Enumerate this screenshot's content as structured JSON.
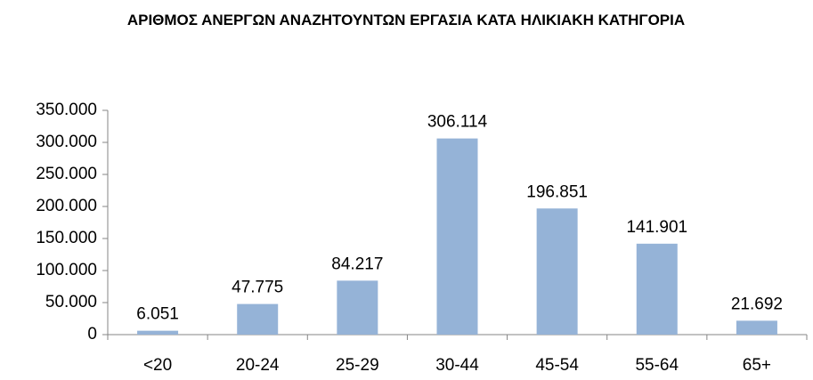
{
  "chart_data": {
    "type": "bar",
    "title": "ΑΡΙΘΜΟΣ ΑΝΕΡΓΩΝ ΑΝΑΖΗΤΟΥΝΤΩΝ ΕΡΓΑΣΙΑ ΚΑΤΑ ΗΛΙΚΙΑΚΗ ΚΑΤΗΓΟΡΙΑ",
    "categories": [
      "<20",
      "20-24",
      "25-29",
      "30-44",
      "45-54",
      "55-64",
      "65+"
    ],
    "values": [
      6051,
      47775,
      84217,
      306114,
      196851,
      141901,
      21692
    ],
    "value_labels": [
      "6.051",
      "47.775",
      "84.217",
      "306.114",
      "196.851",
      "141.901",
      "21.692"
    ],
    "color": "#95b3d7",
    "ylim": [
      0,
      350000
    ],
    "yticks": [
      0,
      {
        "value": 50000,
        "label": "50.000"
      },
      {
        "value": 100000,
        "label": "100.000"
      },
      {
        "value": 150000,
        "label": "150.000"
      },
      {
        "value": 200000,
        "label": "200.000"
      },
      {
        "value": 250000,
        "label": "250.000"
      },
      {
        "value": 300000,
        "label": "300.000"
      },
      {
        "value": 350000,
        "label": "350.000"
      }
    ],
    "grid": false
  }
}
